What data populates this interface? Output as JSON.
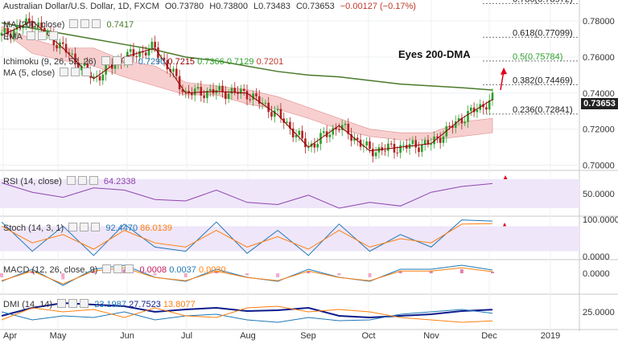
{
  "header": {
    "symbol": "Australian Dollar/U.S. Dollar, 1D, FXCM",
    "open_label": "O",
    "open": "0.73780",
    "high_label": "H",
    "high": "0.73800",
    "low_label": "L",
    "low": "0.73483",
    "close_label": "C",
    "close": "0.73653",
    "change": "−0.00127 (−0.17%)"
  },
  "indicators": {
    "ma200": {
      "label": "MA (200, close)",
      "value": "0.7417"
    },
    "ema": {
      "label": "EMA"
    },
    "ichimoku": {
      "label": "Ichimoku (9, 26, 52, 26)",
      "v1": "0.7290",
      "v2": "0.7215",
      "v3": "0.7366",
      "v4": "0.7129",
      "v5": "0.7201"
    },
    "ma5": {
      "label": "MA (5, close)"
    },
    "rsi": {
      "label": "RSI (14, close)",
      "value": "64.2338"
    },
    "stoch": {
      "label": "Stoch (14, 3, 1)",
      "k": "92.4470",
      "d": "86.0139"
    },
    "macd": {
      "label": "MACD (12, 26, close, 9)",
      "v1": "0.0008",
      "v2": "0.0037",
      "v3": "0.0030"
    },
    "dmi": {
      "label": "DMI (14, 14)",
      "v1": "23.1987",
      "v2": "27.7523",
      "v3": "13.8077"
    }
  },
  "annotation": "Eyes 200-DMA",
  "price_box": "0.73653",
  "colors": {
    "bull": "#2ca02c",
    "bear": "#b22222",
    "ma200": "#4a7a2a",
    "ma5": "#8b0000",
    "cloud": "#f6c7c7",
    "rsi": "#8e44ad",
    "arrow": "#e0001b",
    "fib": "#777777"
  },
  "chart_data": [
    {
      "type": "line",
      "pane": "price",
      "title": "Australian Dollar/U.S. Dollar, 1D, FXCM",
      "x_ticks": [
        "Apr",
        "May",
        "Jun",
        "Jul",
        "Aug",
        "Sep",
        "Oct",
        "Nov",
        "Dec",
        "2019"
      ],
      "y_ticks": [
        "0.78000",
        "0.76000",
        "0.74000",
        "0.72000",
        "0.70000"
      ],
      "ylim": [
        0.698,
        0.789
      ],
      "series": [
        {
          "name": "Price",
          "x": [
            "Apr",
            "Apr",
            "May",
            "May",
            "Jun",
            "Jun",
            "Jul",
            "Jul",
            "Aug",
            "Aug",
            "Sep",
            "Sep",
            "Oct",
            "Oct",
            "Nov",
            "Nov",
            "Dec"
          ],
          "values": [
            0.772,
            0.78,
            0.765,
            0.748,
            0.76,
            0.765,
            0.74,
            0.741,
            0.74,
            0.728,
            0.71,
            0.722,
            0.708,
            0.71,
            0.712,
            0.726,
            0.7365
          ]
        },
        {
          "name": "MA (200, close)",
          "values": [
            0.779,
            0.776,
            0.773,
            0.77,
            0.767,
            0.764,
            0.76,
            0.758,
            0.755,
            0.752,
            0.75,
            0.749,
            0.747,
            0.745,
            0.744,
            0.743,
            0.7417
          ]
        },
        {
          "name": "Ichimoku cloud top",
          "values": [
            0.777,
            0.77,
            0.765,
            0.765,
            0.758,
            0.755,
            0.746,
            0.744,
            0.742,
            0.738,
            0.732,
            0.726,
            0.72,
            0.718,
            0.718,
            0.724,
            0.726
          ]
        },
        {
          "name": "Ichimoku cloud bottom",
          "values": [
            0.775,
            0.762,
            0.758,
            0.755,
            0.749,
            0.744,
            0.739,
            0.739,
            0.734,
            0.731,
            0.726,
            0.72,
            0.716,
            0.714,
            0.714,
            0.716,
            0.718
          ]
        }
      ],
      "fib_levels": [
        {
          "label": "0.786(0.78972)",
          "value": 0.78972
        },
        {
          "label": "0.618(0.77099)",
          "value": 0.77099
        },
        {
          "label": "0.5(0.75784)",
          "value": 0.75784
        },
        {
          "label": "0.382(0.74469)",
          "value": 0.74469
        },
        {
          "label": "0.236(0.72841)",
          "value": 0.72841
        }
      ]
    },
    {
      "type": "line",
      "pane": "rsi",
      "title": "RSI (14, close)",
      "y_ticks": [
        "50.0000"
      ],
      "ylim": [
        20,
        80
      ],
      "bands": [
        30,
        70
      ],
      "values": [
        65,
        52,
        45,
        58,
        55,
        42,
        40,
        55,
        38,
        35,
        48,
        30,
        38,
        33,
        52,
        60,
        64
      ]
    },
    {
      "type": "line",
      "pane": "stoch",
      "title": "Stoch (14, 3, 1)",
      "y_ticks": [
        "100.0000",
        "0.0000"
      ],
      "ylim": [
        0,
        100
      ],
      "bands": [
        20,
        80
      ],
      "series": [
        {
          "name": "%K",
          "values": [
            90,
            20,
            80,
            10,
            85,
            30,
            20,
            90,
            15,
            70,
            10,
            85,
            20,
            60,
            30,
            95,
            92
          ]
        },
        {
          "name": "%D",
          "values": [
            80,
            40,
            60,
            25,
            70,
            40,
            30,
            70,
            30,
            55,
            25,
            70,
            30,
            50,
            40,
            85,
            86
          ]
        }
      ]
    },
    {
      "type": "bar",
      "pane": "macd",
      "title": "MACD (12, 26, close, 9)",
      "y_ticks": [
        "0.0000"
      ],
      "ylim": [
        -0.01,
        0.006
      ],
      "values": [
        -0.002,
        0.001,
        -0.003,
        0.001,
        0.002,
        -0.001,
        -0.002,
        0.001,
        -0.001,
        -0.002,
        0.001,
        -0.001,
        -0.002,
        0.001,
        0.001,
        0.002,
        0.0008
      ]
    },
    {
      "type": "line",
      "pane": "dmi",
      "title": "DMI (14, 14)",
      "y_ticks": [
        "25.0000"
      ],
      "ylim": [
        5,
        45
      ],
      "series": [
        {
          "name": "ADX",
          "values": [
            20,
            30,
            36,
            34,
            32,
            25,
            28,
            30,
            26,
            27,
            30,
            20,
            18,
            20,
            22,
            26,
            27.75
          ]
        },
        {
          "name": "+DI",
          "values": [
            25,
            15,
            20,
            18,
            25,
            15,
            20,
            22,
            15,
            12,
            18,
            14,
            15,
            22,
            25,
            28,
            23.2
          ]
        },
        {
          "name": "-DI",
          "values": [
            15,
            30,
            25,
            28,
            18,
            30,
            20,
            18,
            30,
            32,
            25,
            28,
            25,
            18,
            15,
            12,
            13.8
          ]
        }
      ]
    }
  ]
}
